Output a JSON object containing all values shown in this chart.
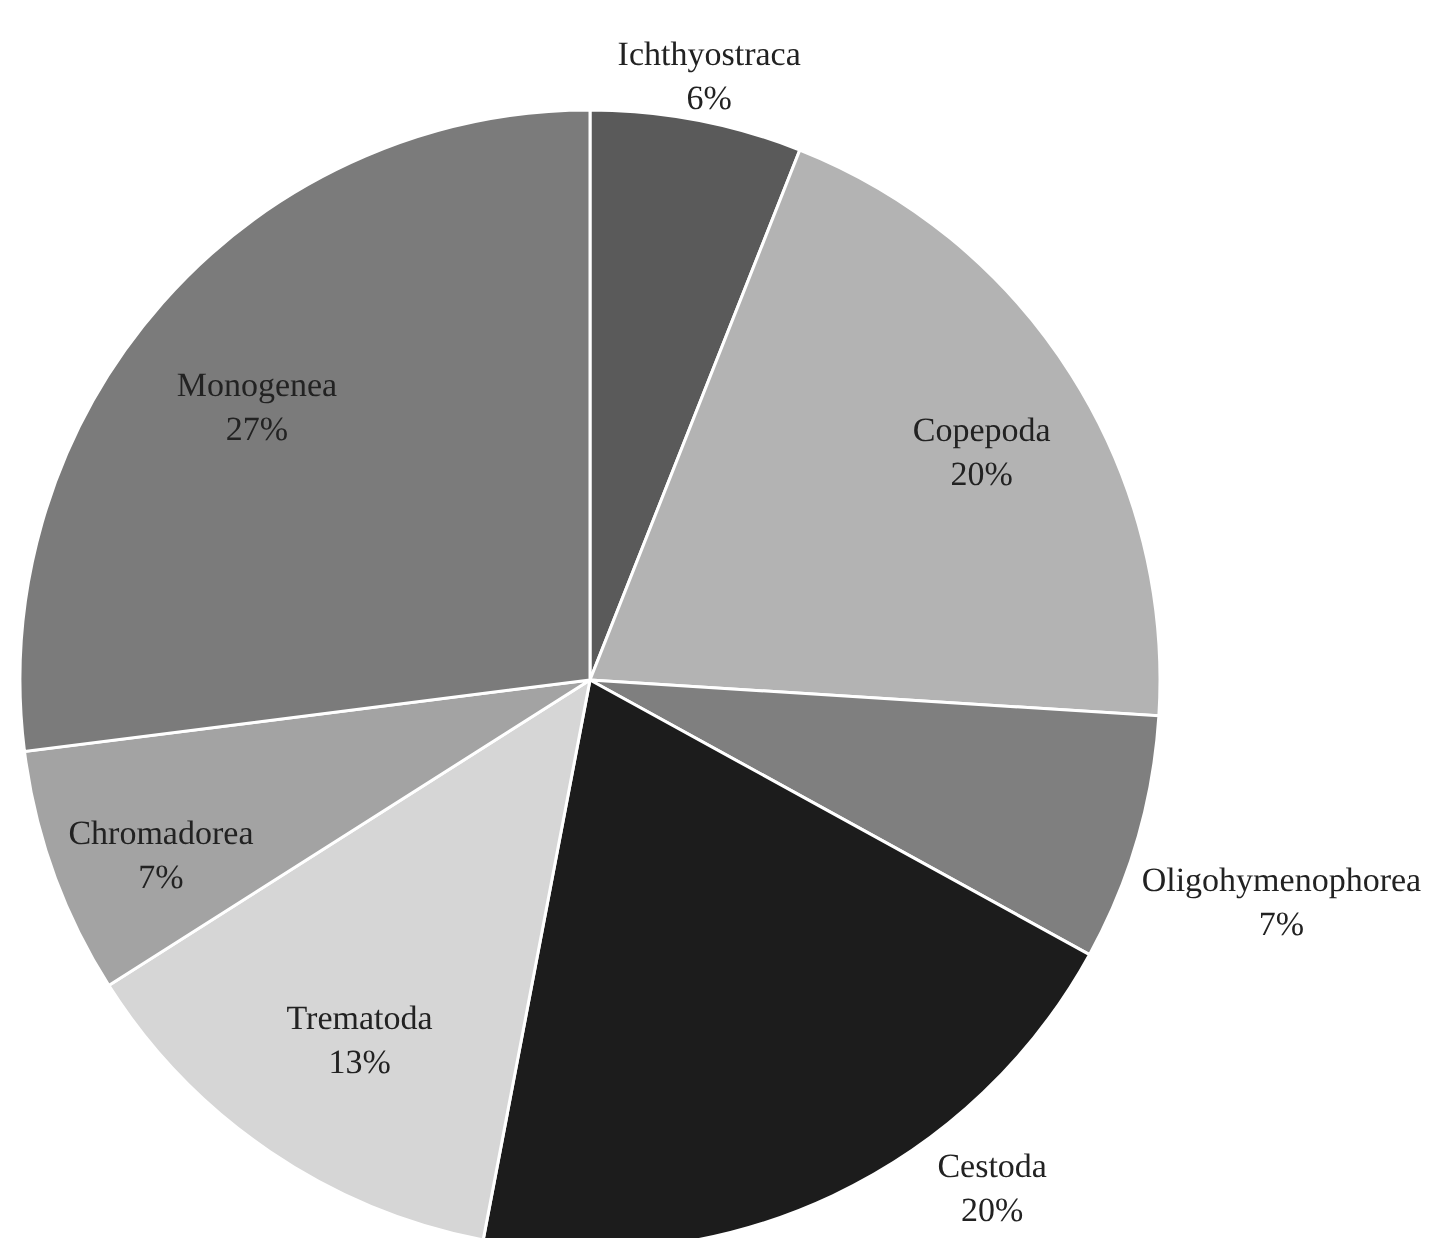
{
  "chart_data": {
    "type": "pie",
    "categories": [
      "Ichthyostraca",
      "Copepoda",
      "Oligohymenophorea",
      "Cestoda",
      "Trematoda",
      "Chromadorea",
      "Monogenea"
    ],
    "values": [
      6,
      20,
      7,
      20,
      13,
      7,
      27
    ],
    "value_labels": [
      "6%",
      "20%",
      "7%",
      "20%",
      "13%",
      "7%",
      "27%"
    ],
    "colors": [
      "#5a5a5a",
      "#b3b3b3",
      "#7f7f7f",
      "#1c1c1c",
      "#d6d6d6",
      "#a3a3a3",
      "#7b7b7b"
    ]
  }
}
